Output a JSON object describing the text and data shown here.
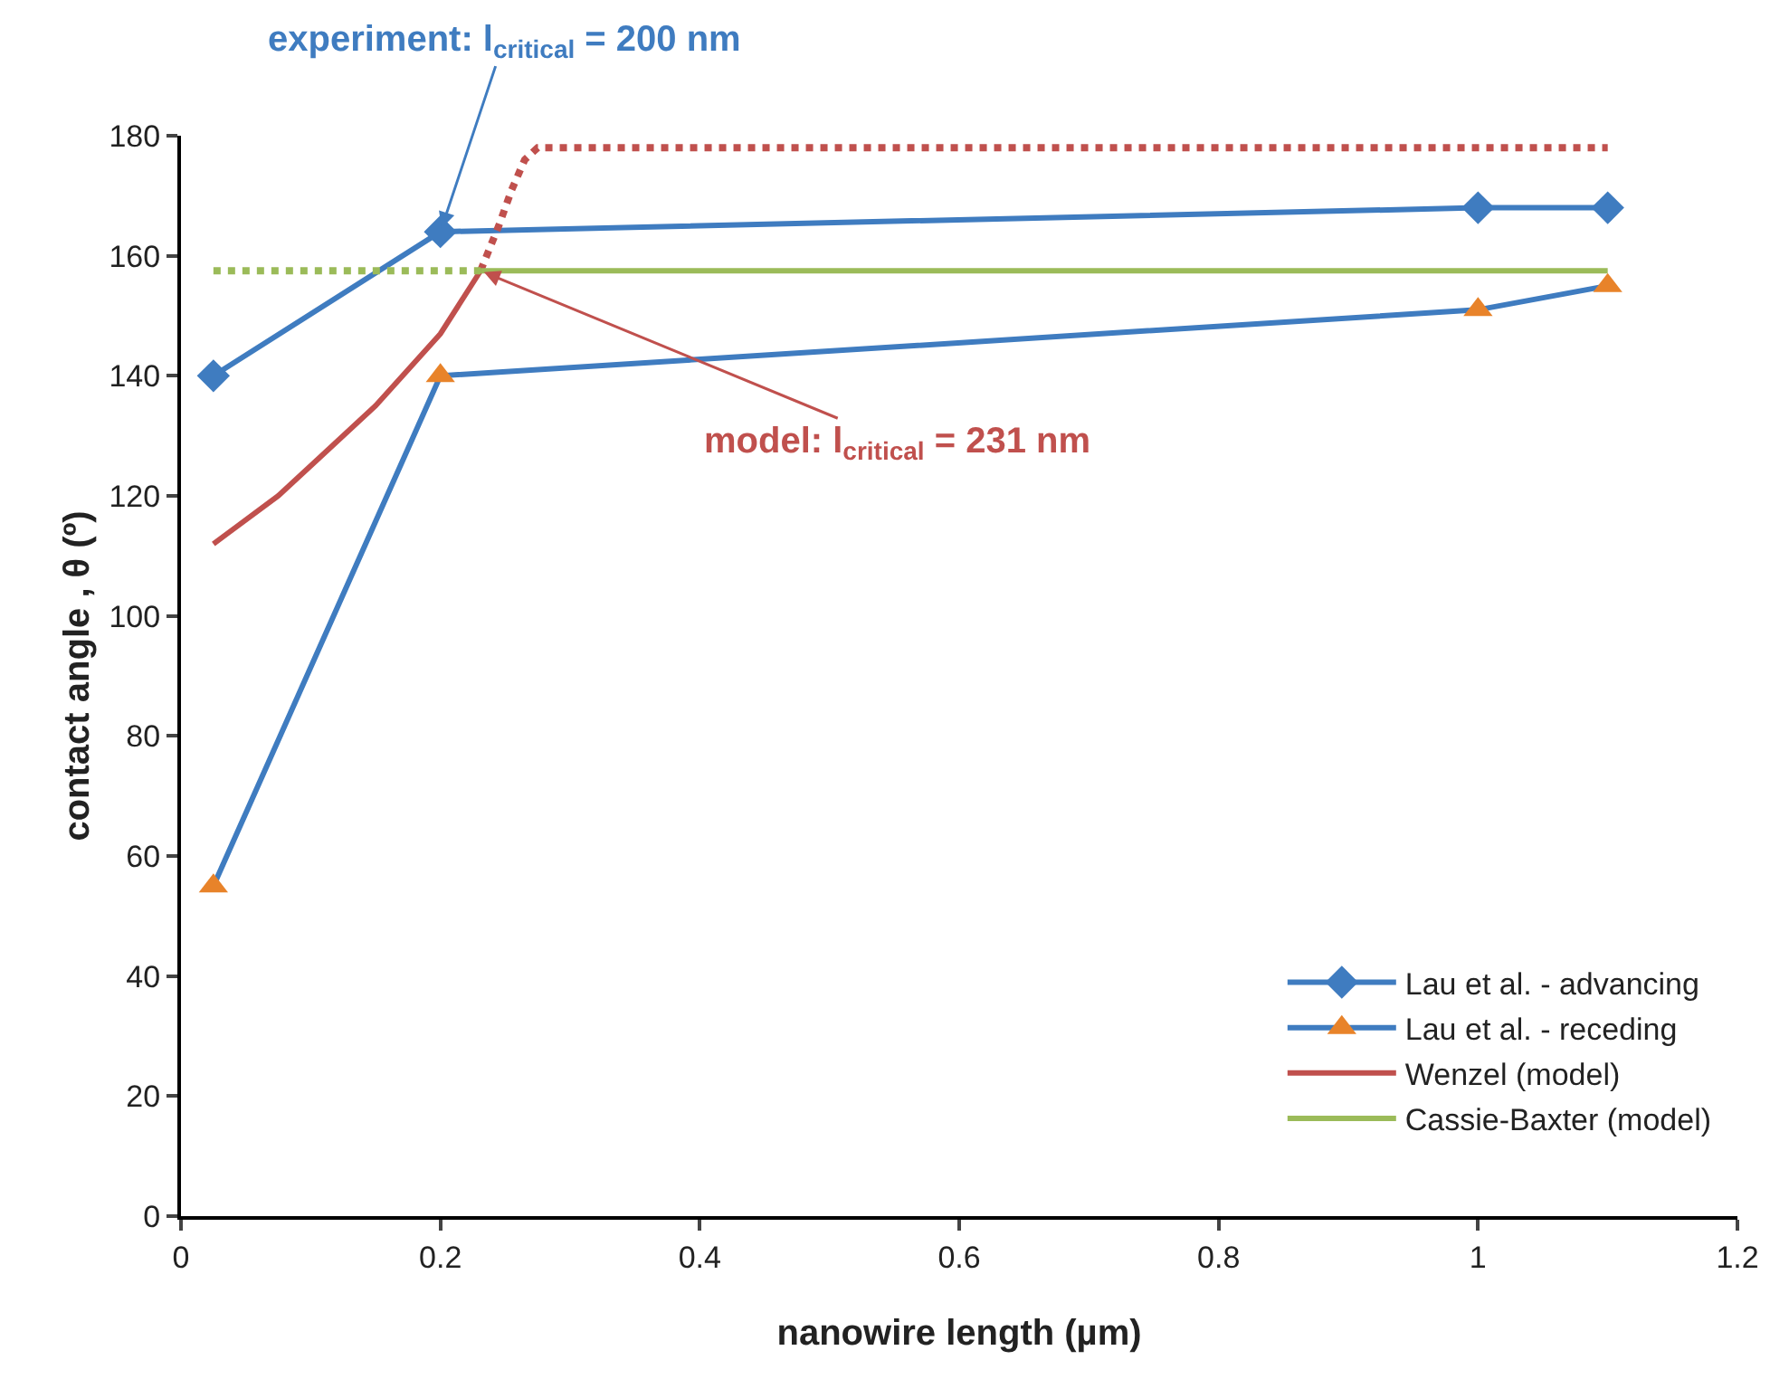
{
  "chart_data": {
    "type": "line",
    "xlabel": "nanowire length (µm)",
    "ylabel": "contact angle , θ (º)",
    "xlim": [
      0,
      1.2
    ],
    "xticks": [
      0,
      0.2,
      0.4,
      0.6,
      0.8,
      1,
      1.2
    ],
    "ylim": [
      0,
      180
    ],
    "yticks": [
      0,
      20,
      40,
      60,
      80,
      100,
      120,
      140,
      160,
      180
    ],
    "grid": false,
    "legend": "bottom right",
    "series": [
      {
        "name": "Lau et al. - advancing",
        "color": "#3f7cc0",
        "marker": "diamond",
        "line_style": "solid",
        "x": [
          0.025,
          0.2,
          1.0,
          1.1
        ],
        "values": [
          140,
          164,
          168,
          168
        ]
      },
      {
        "name": "Lau et al. - receding",
        "color": "#3f7cc0",
        "colors": [
          "#e8832a",
          "#e8832a",
          "#e8832a",
          "#e8832a"
        ],
        "marker": "triangle",
        "line_style": "solid",
        "x": [
          0.025,
          0.2,
          1.0,
          1.1
        ],
        "values": [
          55,
          140,
          151,
          155
        ]
      },
      {
        "name": "Wenzel (model)",
        "color": "#c0504d",
        "marker": "none",
        "line_style": "solid",
        "x": [
          0.025,
          0.075,
          0.15,
          0.2,
          0.231
        ],
        "values": [
          112,
          120,
          135,
          147,
          157.5
        ]
      },
      {
        "color": "#c0504d",
        "marker": "none",
        "line_style": "dotted",
        "x": [
          0.231,
          0.245,
          0.255,
          0.265,
          0.275,
          1.1
        ],
        "values": [
          157.5,
          165,
          171,
          176,
          178,
          178
        ]
      },
      {
        "name": "Cassie-Baxter (model)",
        "color": "#9bbb59",
        "marker": "none",
        "line_style": "solid",
        "x": [
          0.231,
          1.1
        ],
        "values": [
          157.5,
          157.5
        ]
      },
      {
        "color": "#9bbb59",
        "marker": "none",
        "line_style": "dotted",
        "x": [
          0.025,
          0.231
        ],
        "values": [
          157.5,
          157.5
        ]
      }
    ],
    "annotations": [
      {
        "text": "experiment: l$_{critical}$ = 200 nm",
        "x": 0.2,
        "y": 164
      },
      {
        "text": "model: l$_{critical}$ = 231 nm",
        "x": 0.231,
        "y": 157.5
      }
    ]
  }
}
